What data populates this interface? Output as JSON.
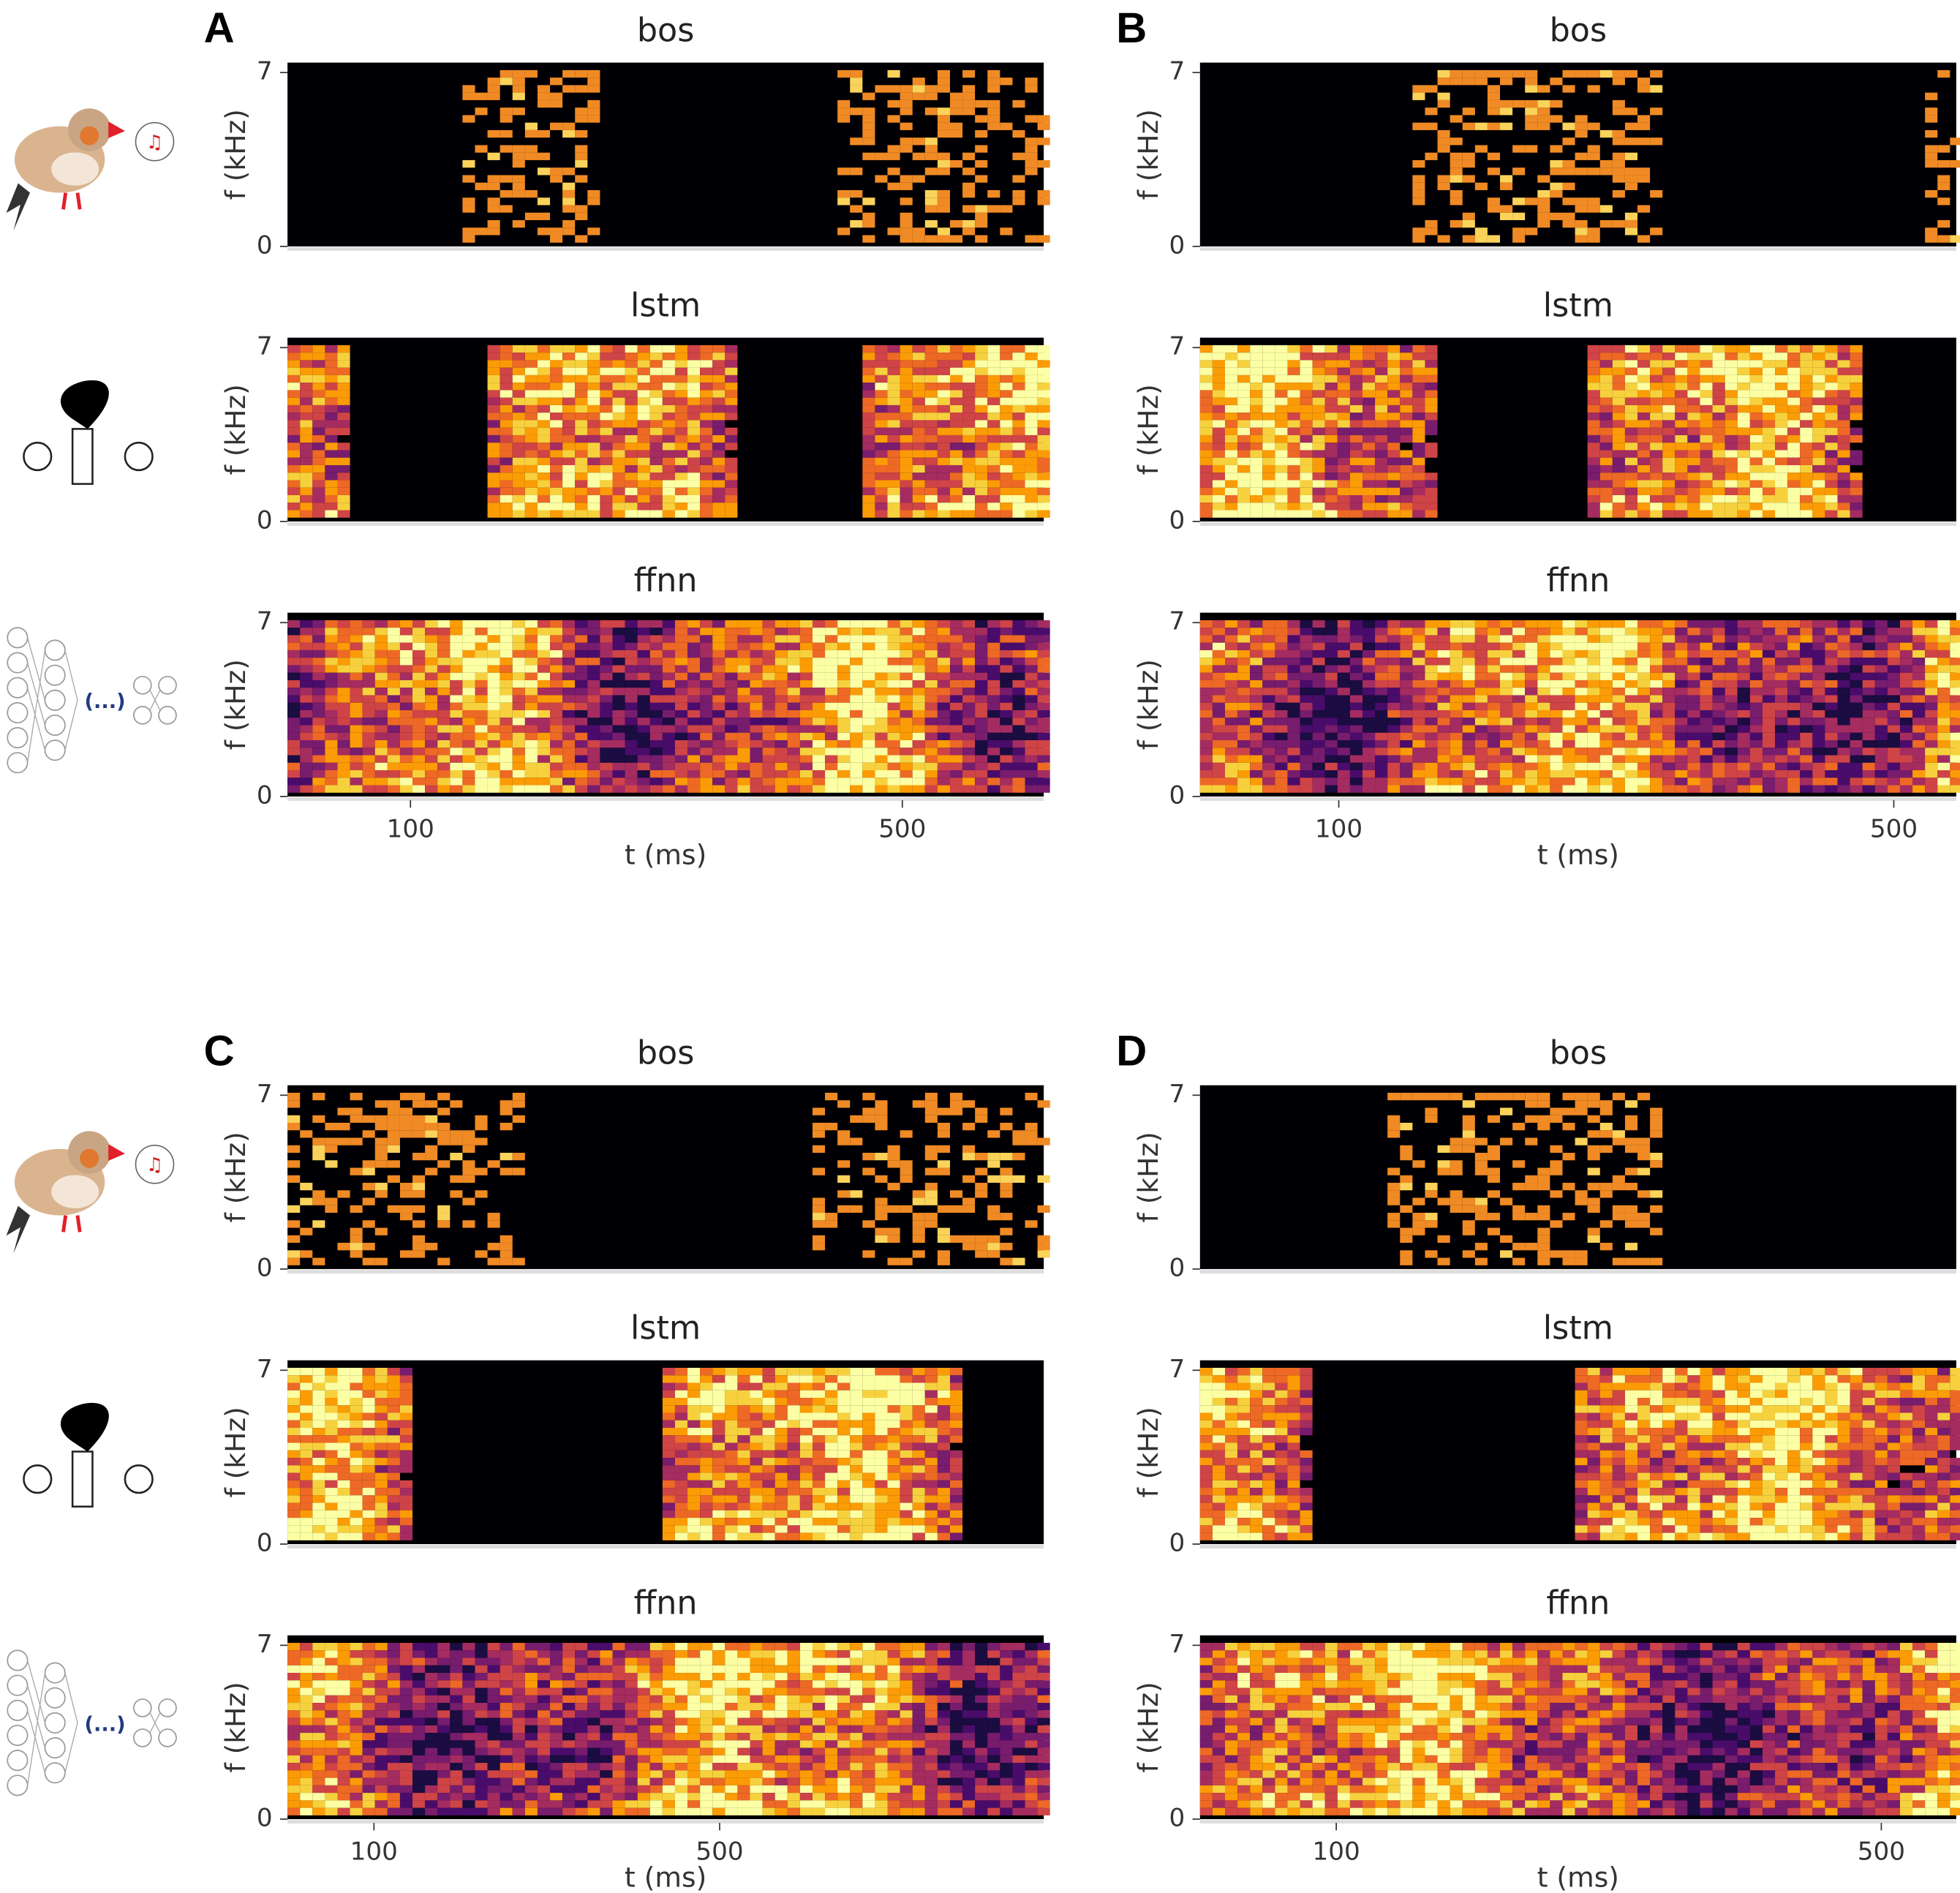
{
  "chart_data": [
    {
      "type": "heatmap",
      "label": "A",
      "xlabel": "t (ms)",
      "xlim": [
        0,
        615
      ],
      "xticks": [
        100,
        500
      ],
      "ylabel": "f (kHz)",
      "ylim": [
        0,
        7.4
      ],
      "yticks": [
        0,
        7
      ],
      "icons": true,
      "subplots": [
        {
          "title": "bos"
        },
        {
          "title": "lstm"
        },
        {
          "title": "ffnn"
        }
      ]
    },
    {
      "type": "heatmap",
      "label": "B",
      "xlabel": "t (ms)",
      "xlim": [
        0,
        545
      ],
      "xticks": [
        100,
        500
      ],
      "ylabel": "f (kHz)",
      "ylim": [
        0,
        7.4
      ],
      "yticks": [
        0,
        7
      ],
      "icons": false,
      "subplots": [
        {
          "title": "bos"
        },
        {
          "title": "lstm"
        },
        {
          "title": "ffnn"
        }
      ]
    },
    {
      "type": "heatmap",
      "label": "C",
      "xlabel": "t (ms)",
      "xlim": [
        0,
        875
      ],
      "xticks": [
        100,
        500
      ],
      "ylabel": "f (kHz)",
      "ylim": [
        0,
        7.4
      ],
      "yticks": [
        0,
        7
      ],
      "icons": true,
      "subplots": [
        {
          "title": "bos"
        },
        {
          "title": "lstm"
        },
        {
          "title": "ffnn"
        }
      ]
    },
    {
      "type": "heatmap",
      "label": "D",
      "xlabel": "t (ms)",
      "xlim": [
        0,
        555
      ],
      "xticks": [
        100,
        500
      ],
      "ylabel": "f (kHz)",
      "ylim": [
        0,
        7.4
      ],
      "yticks": [
        0,
        7
      ],
      "icons": false,
      "subplots": [
        {
          "title": "bos"
        },
        {
          "title": "lstm"
        },
        {
          "title": "ffnn"
        }
      ]
    }
  ]
}
